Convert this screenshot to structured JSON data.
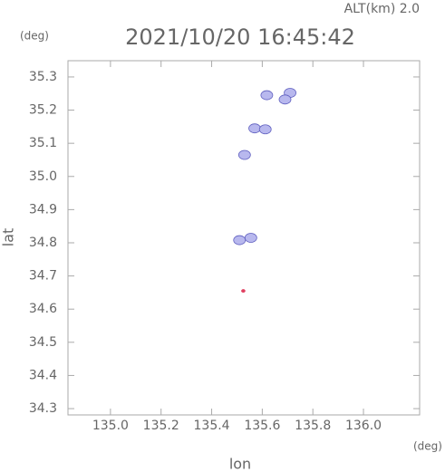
{
  "chart_data": {
    "type": "scatter",
    "title": "2021/10/20 16:45:42",
    "subtitle": "ALT(km) 2.0",
    "y_unit": "(deg)",
    "x_unit": "(deg)",
    "xlabel": "lon",
    "ylabel": "lat",
    "xlim": [
      134.832,
      136.222
    ],
    "ylim": [
      34.281,
      35.349
    ],
    "xticks": [
      {
        "value": 135.0,
        "label": "135.0"
      },
      135.2,
      135.4,
      135.6,
      135.8,
      {
        "value": 136.0,
        "label": "136.0"
      }
    ],
    "yticks": [
      34.3,
      34.4,
      34.5,
      34.6,
      34.7,
      34.8,
      34.9,
      {
        "value": 35.0,
        "label": "35.0"
      },
      35.1,
      35.2,
      35.3
    ],
    "series": [
      {
        "color": "#b8b8ee",
        "x": [
          135.618,
          135.71,
          135.69,
          135.57,
          135.612,
          135.53,
          135.51,
          135.555
        ],
        "values": [
          35.245,
          35.252,
          35.232,
          35.145,
          35.142,
          35.065,
          34.808,
          34.815
        ]
      },
      {
        "color": "#e04060",
        "x": [
          135.525
        ],
        "values": [
          34.655
        ]
      }
    ]
  }
}
